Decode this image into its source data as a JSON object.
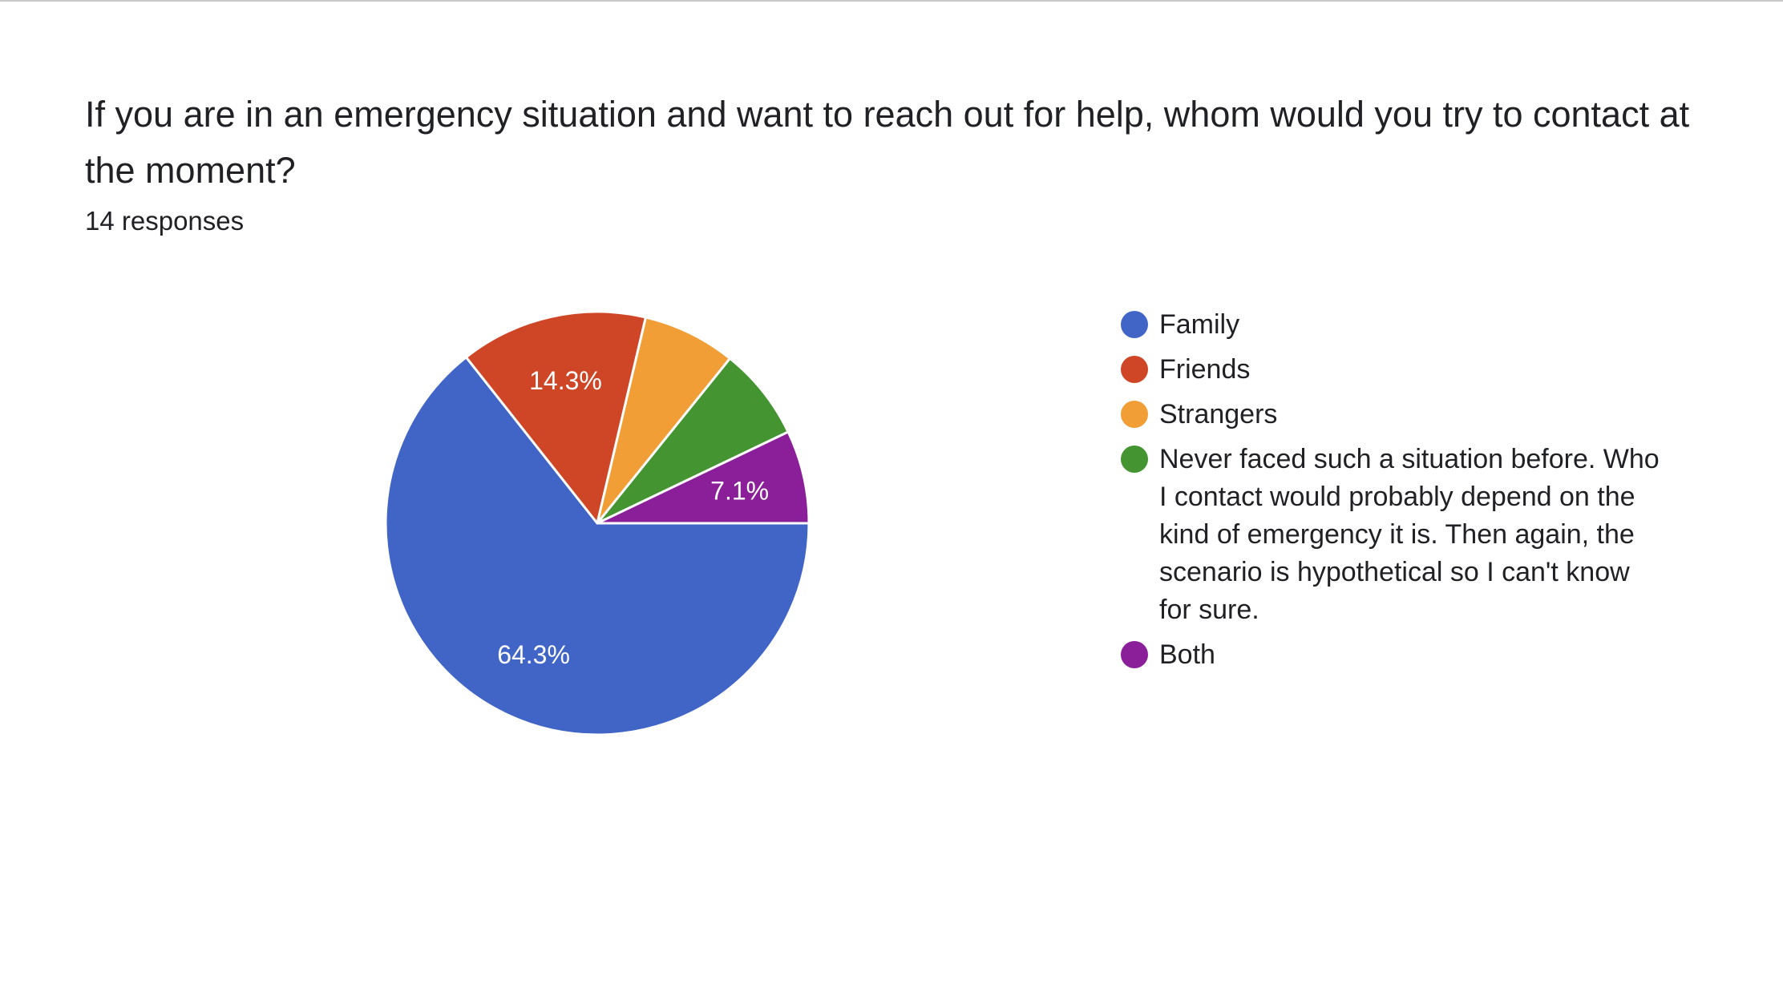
{
  "question": {
    "text": "If you are in an emergency situation and want to reach out for help, whom would you try to contact at the moment?",
    "response_count": "14 responses"
  },
  "chart_data": {
    "type": "pie",
    "slices": [
      {
        "label": "Family",
        "value": 64.3,
        "color": "#4065c7",
        "data_label": "64.3%"
      },
      {
        "label": "Friends",
        "value": 14.3,
        "color": "#cf4626",
        "data_label": "14.3%"
      },
      {
        "label": "Strangers",
        "value": 7.1,
        "color": "#f09e35",
        "data_label": ""
      },
      {
        "label": "Never faced such a situation before. Who I contact would probably depend on the kind of emergency it is. Then again, the scenario is hypothetical so I can't know for sure.",
        "value": 7.1,
        "color": "#449432",
        "data_label": ""
      },
      {
        "label": "Both",
        "value": 7.1,
        "color": "#8b1f9a",
        "data_label": "7.1%"
      }
    ],
    "legend_position": "right"
  }
}
